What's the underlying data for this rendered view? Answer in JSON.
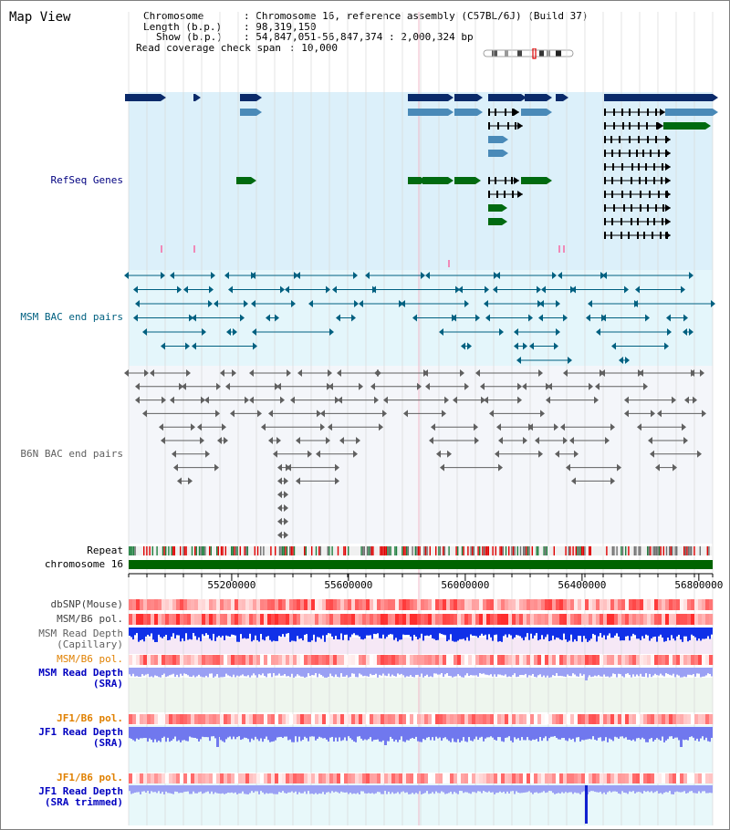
{
  "page": {
    "title": "Map View",
    "info": {
      "chromosome_key": "Chromosome",
      "chromosome_value": "Chromosome 16, reference assembly (C57BL/6J) (Build 37)",
      "length_key": "Length (b.p.)",
      "length_value": "98,319,150",
      "show_key": "Show (b.p.)",
      "show_value": "54,847,051-56,847,374 : 2,000,324 bp",
      "span_key": "Read coverage check span",
      "span_value": "10,000"
    }
  },
  "tracks": {
    "refseq": {
      "label": "RefSeq Genes",
      "color": "#000080",
      "bg": "#dcf0fa"
    },
    "msm_bac": {
      "label": "MSM BAC end pairs",
      "color": "#006080",
      "bg": "#e4f6fb"
    },
    "b6n_bac": {
      "label": "B6N BAC end pairs",
      "color": "#606060",
      "bg": "#f4f6fa"
    },
    "repeat": {
      "label": "Repeat"
    },
    "chromosome": {
      "label": "chromosome 16",
      "color": "#006400"
    },
    "dbsnp": {
      "label": "dbSNP(Mouse)"
    },
    "msm_b6_pol_1": {
      "label": "MSM/B6 pol."
    },
    "msm_depth_cap": {
      "label_1": "MSM Read Depth",
      "label_2": "(Capillary)",
      "color": "#606060"
    },
    "msm_b6_pol_2": {
      "label": "MSM/B6 pol.",
      "color": "#e08000"
    },
    "msm_depth_sra": {
      "label_1": "MSM Read Depth",
      "label_2": "(SRA)",
      "color": "#0000c0"
    },
    "jf1_b6_pol_1": {
      "label": "JF1/B6 pol.",
      "color": "#e08000"
    },
    "jf1_depth_sra": {
      "label_1": "JF1 Read Depth",
      "label_2": "(SRA)",
      "color": "#0000c0"
    },
    "jf1_b6_pol_2": {
      "label": "JF1/B6 pol.",
      "color": "#e08000"
    },
    "jf1_depth_trim": {
      "label_1": "JF1 Read Depth",
      "label_2": "(SRA trimmed)",
      "color": "#0000c0"
    }
  },
  "axis": {
    "ticks": [
      "55200000",
      "55600000",
      "56000000",
      "56400000",
      "56800000"
    ],
    "tick_values": [
      55200000,
      55600000,
      56000000,
      56400000,
      56800000
    ],
    "range": [
      54847051,
      56847374
    ]
  }
}
